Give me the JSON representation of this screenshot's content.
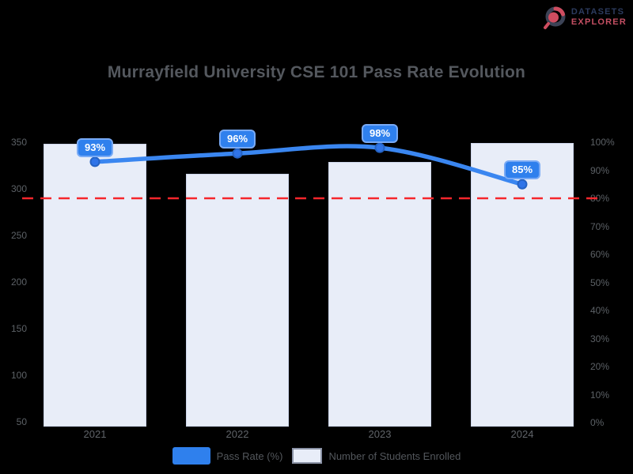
{
  "logo": {
    "line1": "DATASETS",
    "line2": "EXPLORER",
    "icon": "donut-chart-icon"
  },
  "title": "Murrayfield University CSE 101 Pass Rate Evolution",
  "chart_data": {
    "type": "bar",
    "subtype": "bar-with-line-overlay",
    "categories": [
      "2021",
      "2022",
      "2023",
      "2024"
    ],
    "series": [
      {
        "name": "Pass Rate (%)",
        "type": "line",
        "axis": "right",
        "values": [
          93,
          96,
          98,
          85
        ],
        "point_labels": [
          "93%",
          "96%",
          "98%",
          "85%"
        ]
      },
      {
        "name": "Number of Students Enrolled",
        "type": "bar",
        "axis": "left",
        "values": [
          348,
          316,
          329,
          349
        ]
      }
    ],
    "left_axis": {
      "ticks": [
        350,
        300,
        250,
        200,
        150,
        100,
        50
      ]
    },
    "right_axis": {
      "ticks": [
        "100%",
        "90%",
        "80%",
        "70%",
        "60%",
        "50%",
        "40%",
        "30%",
        "20%",
        "10%",
        "0%"
      ],
      "range": [
        0,
        100
      ]
    },
    "threshold": {
      "value": 80,
      "style": "dashed"
    },
    "legend_position": "bottom",
    "grid": false
  },
  "colors": {
    "background": "#000000",
    "bar_fill": "#e8edf8",
    "bar_border": "#ccd5ea",
    "line": "#3a86f0",
    "marker_fill": "#2f74e8",
    "marker_stroke": "#2563c4",
    "badge_fill": "#2f80ed",
    "badge_border": "#79aaf5",
    "badge_text": "#ffffff",
    "threshold_red": "#f5262c",
    "title_text": "#54585e",
    "axis_text": "#5c6166",
    "legend_text": "#53575c",
    "logo_navy": "#2c3b5e",
    "logo_pink": "#c44f63"
  }
}
